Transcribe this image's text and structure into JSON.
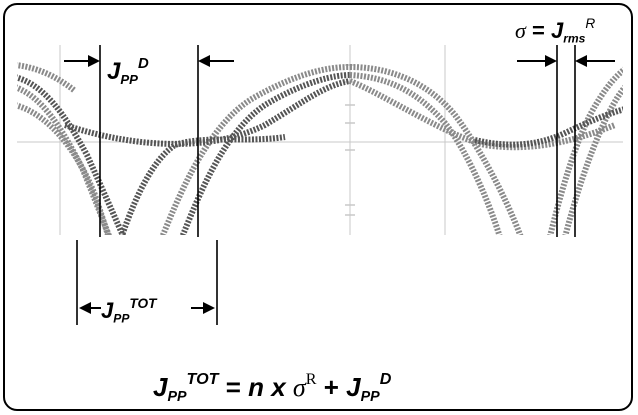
{
  "labels": {
    "jpp_d": {
      "base": "J",
      "sub": "PP",
      "sup": "D"
    },
    "sigma": {
      "sym": "σ",
      "eq": " = ",
      "base": "J",
      "sub": "rms",
      "sup": "R"
    },
    "jpp_tot": {
      "base": "J",
      "sub": "PP",
      "sup": "TOT"
    }
  },
  "formula": {
    "lhs_base": "J",
    "lhs_sub": "PP",
    "lhs_sup": "TOT",
    "eq": " = ",
    "n": "n",
    "x": " x ",
    "sigma": "σ",
    "sigma_sup": "R",
    "plus": " + ",
    "rhs_base": "J",
    "rhs_sub": "PP",
    "rhs_sup": "D"
  },
  "colors": {
    "trace": "#8a8a8a",
    "trace_dark": "#555555",
    "grid": "#c8c8c8",
    "line": "#000000"
  }
}
